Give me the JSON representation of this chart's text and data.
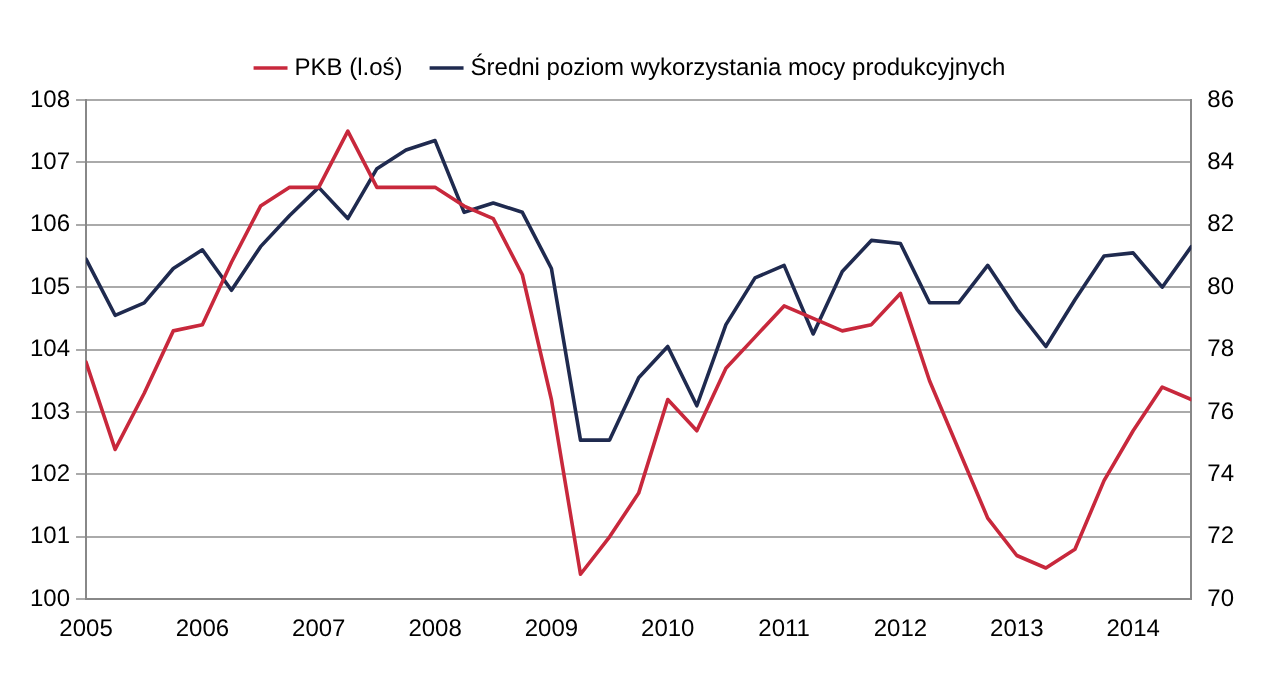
{
  "chart_data": {
    "type": "line",
    "x": [
      2005,
      2005.25,
      2005.5,
      2005.75,
      2006,
      2006.25,
      2006.5,
      2006.75,
      2007,
      2007.25,
      2007.5,
      2007.75,
      2008,
      2008.25,
      2008.5,
      2008.75,
      2009,
      2009.25,
      2009.5,
      2009.75,
      2010,
      2010.25,
      2010.5,
      2010.75,
      2011,
      2011.25,
      2011.5,
      2011.75,
      2012,
      2012.25,
      2012.5,
      2012.75,
      2013,
      2013.25,
      2013.5,
      2013.75,
      2014,
      2014.25,
      2014.5
    ],
    "series": [
      {
        "name": "PKB (l.oś)",
        "color": "#c8283c",
        "values": [
          103.8,
          102.4,
          103.3,
          104.3,
          104.4,
          105.4,
          106.3,
          106.6,
          106.6,
          107.5,
          106.6,
          106.6,
          106.6,
          106.3,
          106.1,
          105.2,
          103.2,
          100.4,
          101.0,
          101.7,
          103.2,
          102.7,
          103.7,
          104.2,
          104.7,
          104.5,
          104.3,
          104.4,
          104.9,
          103.5,
          102.4,
          101.3,
          100.7,
          100.5,
          100.8,
          101.9,
          102.7,
          103.4,
          103.2
        ]
      },
      {
        "name": "Średni poziom wykorzystania mocy produkcyjnych",
        "color": "#1f2a4f",
        "axis": "y2",
        "values": [
          80.9,
          79.1,
          79.5,
          80.6,
          81.2,
          79.9,
          81.3,
          82.3,
          83.2,
          82.2,
          83.8,
          84.4,
          84.7,
          82.4,
          82.7,
          82.4,
          80.6,
          75.1,
          75.1,
          77.1,
          78.1,
          76.2,
          78.8,
          80.3,
          80.7,
          78.5,
          80.5,
          81.5,
          81.4,
          79.5,
          79.5,
          80.7,
          79.3,
          78.1,
          79.6,
          81.0,
          81.1,
          80.0,
          81.3
        ]
      }
    ],
    "xlim": [
      2005,
      2014.5
    ],
    "xticks": [
      2005,
      2006,
      2007,
      2008,
      2009,
      2010,
      2011,
      2012,
      2013,
      2014
    ],
    "ylim": [
      100,
      108
    ],
    "yticks": [
      100,
      101,
      102,
      103,
      104,
      105,
      106,
      107,
      108
    ],
    "y2lim": [
      70,
      86
    ],
    "y2ticks": [
      70,
      72,
      74,
      76,
      78,
      80,
      82,
      84,
      86
    ],
    "grid": "y",
    "legend": "top",
    "marker": "none",
    "line_style": "solid"
  }
}
